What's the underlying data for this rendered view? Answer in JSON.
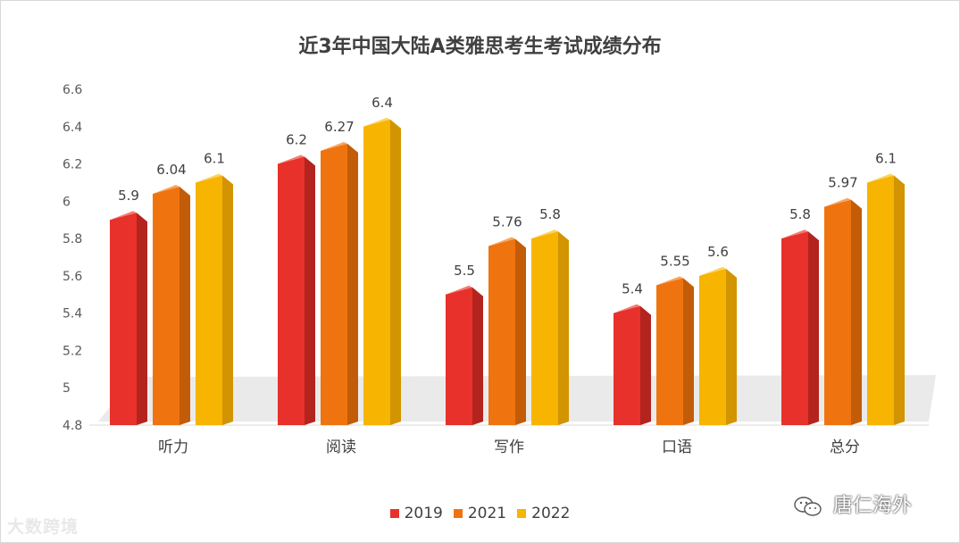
{
  "chart_data": {
    "type": "bar",
    "title": "近3年中国大陆A类雅思考生考试成绩分布",
    "categories": [
      "听力",
      "阅读",
      "写作",
      "口语",
      "总分"
    ],
    "series": [
      {
        "name": "2019",
        "color": "#e8312a",
        "sideColor": "#b3241f",
        "topColor": "#f15b4f",
        "values": [
          5.9,
          6.2,
          5.5,
          5.4,
          5.8
        ],
        "labels": [
          "5.9",
          "6.2",
          "5.5",
          "5.4",
          "5.8"
        ]
      },
      {
        "name": "2021",
        "color": "#ef7410",
        "sideColor": "#c25c08",
        "topColor": "#f5913a",
        "values": [
          6.04,
          6.27,
          5.76,
          5.55,
          5.97
        ],
        "labels": [
          "6.04",
          "6.27",
          "5.76",
          "5.55",
          "5.97"
        ]
      },
      {
        "name": "2022",
        "color": "#f7b400",
        "sideColor": "#d29400",
        "topColor": "#fbc935",
        "values": [
          6.1,
          6.4,
          5.8,
          5.6,
          6.1
        ],
        "labels": [
          "6.1",
          "6.4",
          "5.8",
          "5.6",
          "6.1"
        ]
      }
    ],
    "yticks": [
      "4.8",
      "5",
      "5.2",
      "5.4",
      "5.6",
      "5.8",
      "6",
      "6.2",
      "6.4",
      "6.6"
    ],
    "ylim": [
      4.8,
      6.6
    ],
    "xlabel": "",
    "ylabel": "",
    "grid": false,
    "legend_position": "bottom"
  },
  "watermark": {
    "left": "大数跨境",
    "right": "唐仁海外"
  }
}
